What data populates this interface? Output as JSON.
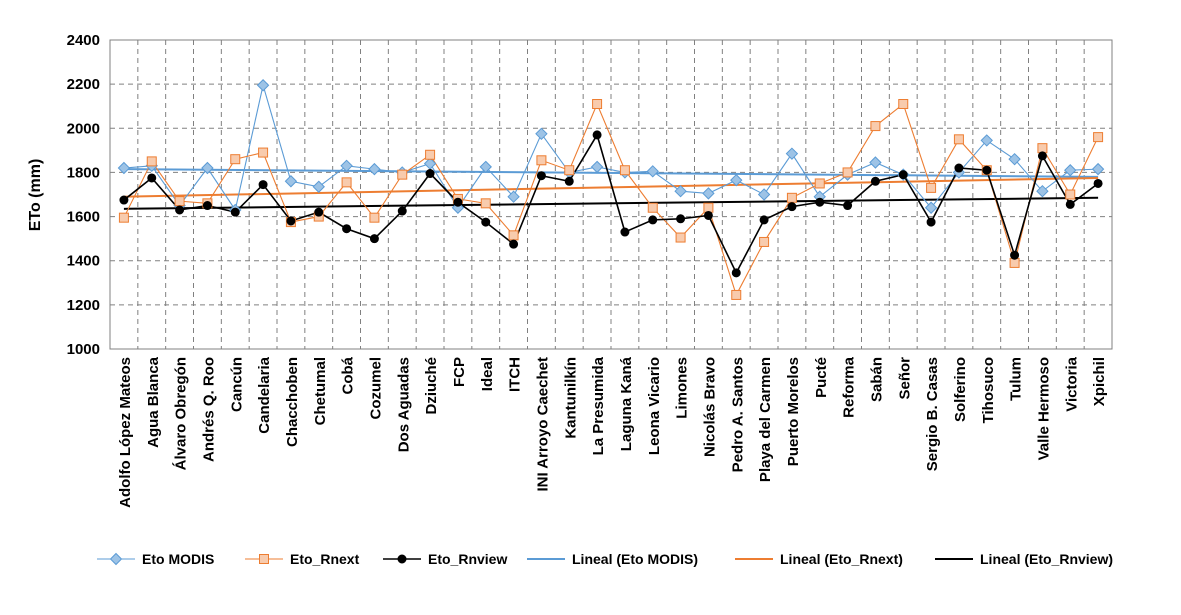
{
  "chart_data": {
    "type": "line",
    "title": "",
    "xlabel": "",
    "ylabel": "ETo (mm)",
    "ylim": [
      1000,
      2400
    ],
    "yticks": [
      1000,
      1200,
      1400,
      1600,
      1800,
      2000,
      2200,
      2400
    ],
    "grid": true,
    "legend_position": "bottom",
    "categories": [
      "Adolfo López Mateos",
      "Agua Blanca",
      "Álvaro Obregón",
      "Andrés Q. Roo",
      "Cancún",
      "Candelaria",
      "Chacchoben",
      "Chetumal",
      "Cobá",
      "Cozumel",
      "Dos Aguadas",
      "Dziuché",
      "FCP",
      "Ideal",
      "ITCH",
      "INI Arroyo Caechet",
      "Kantunilkín",
      "La Presumida",
      "Laguna Kaná",
      "Leona Vicario",
      "Limones",
      "Nicolás Bravo",
      "Pedro A. Santos",
      "Playa del Carmen",
      "Puerto Morelos",
      "Pucté",
      "Reforma",
      "Sabán",
      "Señor",
      "Sergio B. Casas",
      "Solferino",
      "Tihosuco",
      "Tulum",
      "Valle Hermoso",
      "Victoria",
      "Xpichil"
    ],
    "series": [
      {
        "name": "Eto MODIS",
        "marker": "diamond",
        "color": "#5B9BD5",
        "values": [
          1820,
          1830,
          1650,
          1820,
          1630,
          2195,
          1760,
          1735,
          1830,
          1815,
          1800,
          1840,
          1640,
          1825,
          1690,
          1975,
          1800,
          1825,
          1800,
          1805,
          1715,
          1705,
          1765,
          1700,
          1885,
          1690,
          1790,
          1845,
          1790,
          1640,
          1800,
          1945,
          1860,
          1715,
          1810,
          1815
        ]
      },
      {
        "name": "Eto_Rnext",
        "marker": "square",
        "color": "#ED7D31",
        "values": [
          1595,
          1850,
          1670,
          1660,
          1860,
          1890,
          1575,
          1600,
          1755,
          1595,
          1790,
          1880,
          1680,
          1660,
          1515,
          1855,
          1810,
          2110,
          1810,
          1640,
          1505,
          1640,
          1245,
          1485,
          1685,
          1750,
          1800,
          2010,
          2110,
          1730,
          1950,
          1810,
          1390,
          1910,
          1700,
          1960
        ]
      },
      {
        "name": "Eto_Rnview",
        "marker": "circle",
        "color": "#000000",
        "values": [
          1675,
          1775,
          1630,
          1650,
          1620,
          1745,
          1580,
          1620,
          1545,
          1500,
          1625,
          1795,
          1665,
          1575,
          1475,
          1785,
          1760,
          1970,
          1530,
          1585,
          1590,
          1605,
          1345,
          1585,
          1645,
          1665,
          1650,
          1760,
          1790,
          1575,
          1820,
          1810,
          1425,
          1875,
          1655,
          1750
        ]
      }
    ],
    "trendlines": [
      {
        "name": "Lineal (Eto MODIS)",
        "color": "#5B9BD5",
        "start": 1815,
        "end": 1780
      },
      {
        "name": "Lineal (Eto_Rnext)",
        "color": "#ED7D31",
        "start": 1690,
        "end": 1775
      },
      {
        "name": "Lineal (Eto_Rnview)",
        "color": "#000000",
        "start": 1635,
        "end": 1685
      }
    ]
  }
}
